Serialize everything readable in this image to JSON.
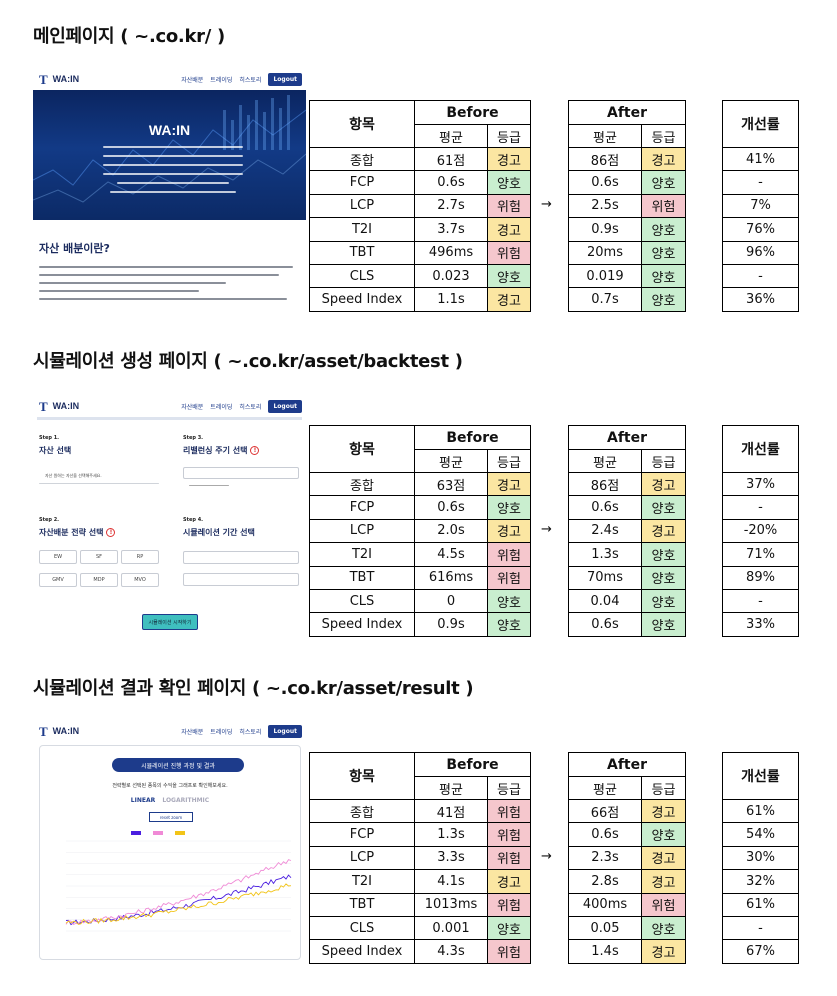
{
  "column_headers": {
    "item": "항목",
    "before": "Before",
    "after": "After",
    "avg": "평균",
    "grade": "등급",
    "improvement": "개선률"
  },
  "arrow": "→",
  "thumbnail_ui": {
    "logo_mark": "T",
    "logo": "WA:IN",
    "nav": [
      "자산배분",
      "트레이딩",
      "히스토리"
    ],
    "logout": "Logout",
    "hero_title": "WA:IN",
    "intro_title": "자산 배분이란?",
    "steps": [
      {
        "label": "Step 1.",
        "title": "자산 선택"
      },
      {
        "label": "Step 2.",
        "title": "자산배분 전략 선택"
      },
      {
        "label": "Step 3.",
        "title": "리밸런싱 주기 선택"
      },
      {
        "label": "Step 4.",
        "title": "시뮬레이션 기간 선택"
      }
    ],
    "step1_hint": "자산   원하는 자산을 선택해주세요.",
    "strategies": [
      "EW",
      "SF",
      "RP",
      "GMV",
      "MDP",
      "MVO"
    ],
    "info_icon": "!",
    "simulate_button": "시뮬레이션 시작하기",
    "result_title": "시뮬레이션 진행 과정 및 결과",
    "result_sub": "전략별로 선택된 종목의 수익을 그래프로 확인해보세요.",
    "scale_linear": "LINEAR",
    "scale_log": "LOGARITHMIC",
    "reset_zoom": "reset zoom",
    "line_colors": [
      "#4b1fe0",
      "#f08ad6",
      "#f2c418"
    ]
  },
  "sections": [
    {
      "title": "메인페이지 ( ~.co.kr/ )",
      "rows": [
        {
          "item": "종합",
          "before": "61점",
          "before_grade": "경고",
          "after": "86점",
          "after_grade": "경고",
          "improvement": "41%"
        },
        {
          "item": "FCP",
          "before": "0.6s",
          "before_grade": "양호",
          "after": "0.6s",
          "after_grade": "양호",
          "improvement": "-"
        },
        {
          "item": "LCP",
          "before": "2.7s",
          "before_grade": "위험",
          "after": "2.5s",
          "after_grade": "위험",
          "improvement": "7%"
        },
        {
          "item": "T2I",
          "before": "3.7s",
          "before_grade": "경고",
          "after": "0.9s",
          "after_grade": "양호",
          "improvement": "76%"
        },
        {
          "item": "TBT",
          "before": "496ms",
          "before_grade": "위험",
          "after": "20ms",
          "after_grade": "양호",
          "improvement": "96%"
        },
        {
          "item": "CLS",
          "before": "0.023",
          "before_grade": "양호",
          "after": "0.019",
          "after_grade": "양호",
          "improvement": "-"
        },
        {
          "item": "Speed Index",
          "before": "1.1s",
          "before_grade": "경고",
          "after": "0.7s",
          "after_grade": "양호",
          "improvement": "36%"
        }
      ]
    },
    {
      "title": "시뮬레이션 생성 페이지 ( ~.co.kr/asset/backtest )",
      "rows": [
        {
          "item": "종합",
          "before": "63점",
          "before_grade": "경고",
          "after": "86점",
          "after_grade": "경고",
          "improvement": "37%"
        },
        {
          "item": "FCP",
          "before": "0.6s",
          "before_grade": "양호",
          "after": "0.6s",
          "after_grade": "양호",
          "improvement": "-"
        },
        {
          "item": "LCP",
          "before": "2.0s",
          "before_grade": "경고",
          "after": "2.4s",
          "after_grade": "경고",
          "improvement": "-20%"
        },
        {
          "item": "T2I",
          "before": "4.5s",
          "before_grade": "위험",
          "after": "1.3s",
          "after_grade": "양호",
          "improvement": "71%"
        },
        {
          "item": "TBT",
          "before": "616ms",
          "before_grade": "위험",
          "after": "70ms",
          "after_grade": "양호",
          "improvement": "89%"
        },
        {
          "item": "CLS",
          "before": "0",
          "before_grade": "양호",
          "after": "0.04",
          "after_grade": "양호",
          "improvement": "-"
        },
        {
          "item": "Speed Index",
          "before": "0.9s",
          "before_grade": "양호",
          "after": "0.6s",
          "after_grade": "양호",
          "improvement": "33%"
        }
      ]
    },
    {
      "title": "시뮬레이션 결과 확인 페이지 ( ~.co.kr/asset/result )",
      "rows": [
        {
          "item": "종합",
          "before": "41점",
          "before_grade": "위험",
          "after": "66점",
          "after_grade": "경고",
          "improvement": "61%"
        },
        {
          "item": "FCP",
          "before": "1.3s",
          "before_grade": "위험",
          "after": "0.6s",
          "after_grade": "양호",
          "improvement": "54%"
        },
        {
          "item": "LCP",
          "before": "3.3s",
          "before_grade": "위험",
          "after": "2.3s",
          "after_grade": "경고",
          "improvement": "30%"
        },
        {
          "item": "T2I",
          "before": "4.1s",
          "before_grade": "경고",
          "after": "2.8s",
          "after_grade": "경고",
          "improvement": "32%"
        },
        {
          "item": "TBT",
          "before": "1013ms",
          "before_grade": "위험",
          "after": "400ms",
          "after_grade": "위험",
          "improvement": "61%"
        },
        {
          "item": "CLS",
          "before": "0.001",
          "before_grade": "양호",
          "after": "0.05",
          "after_grade": "양호",
          "improvement": "-"
        },
        {
          "item": "Speed Index",
          "before": "4.3s",
          "before_grade": "위험",
          "after": "1.4s",
          "after_grade": "경고",
          "improvement": "67%"
        }
      ]
    }
  ]
}
